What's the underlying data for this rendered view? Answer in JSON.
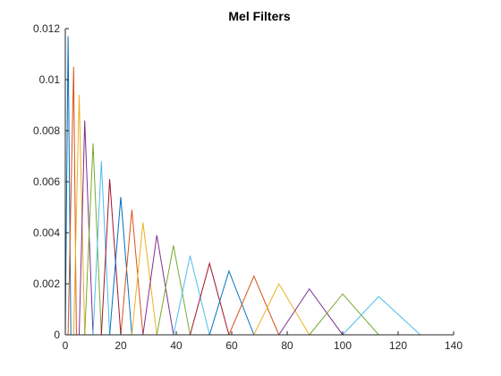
{
  "chart_data": {
    "type": "line",
    "title": "Mel Filters",
    "xlabel": "",
    "ylabel": "",
    "xlim": [
      0,
      140
    ],
    "ylim": [
      0,
      0.012
    ],
    "x_ticks": [
      0,
      20,
      40,
      60,
      80,
      100,
      120,
      140
    ],
    "x_tick_labels": [
      "0",
      "20",
      "40",
      "60",
      "80",
      "100",
      "120",
      "140"
    ],
    "y_ticks": [
      0,
      0.002,
      0.004,
      0.006,
      0.008,
      0.01,
      0.012
    ],
    "y_tick_labels": [
      "0",
      "0.002",
      "0.004",
      "0.006",
      "0.008",
      "0.01",
      "0.012"
    ],
    "grid": false,
    "legend": "none",
    "color_order": [
      "#0072BD",
      "#D95319",
      "#EDB120",
      "#7E2F8E",
      "#77AC30",
      "#4DBEEE",
      "#A2142F"
    ],
    "filters": [
      {
        "left": 0,
        "center": 1,
        "right": 2,
        "peak": 0.0117
      },
      {
        "left": 1,
        "center": 3,
        "right": 4,
        "peak": 0.0105
      },
      {
        "left": 3,
        "center": 5,
        "right": 7,
        "peak": 0.0094
      },
      {
        "left": 5,
        "center": 7,
        "right": 10,
        "peak": 0.0084
      },
      {
        "left": 7,
        "center": 10,
        "right": 13,
        "peak": 0.0075
      },
      {
        "left": 10,
        "center": 13,
        "right": 16,
        "peak": 0.0068
      },
      {
        "left": 13,
        "center": 16,
        "right": 20,
        "peak": 0.0061
      },
      {
        "left": 16,
        "center": 20,
        "right": 24,
        "peak": 0.0054
      },
      {
        "left": 20,
        "center": 24,
        "right": 28,
        "peak": 0.0049
      },
      {
        "left": 24,
        "center": 28,
        "right": 33,
        "peak": 0.0044
      },
      {
        "left": 28,
        "center": 33,
        "right": 39,
        "peak": 0.0039
      },
      {
        "left": 33,
        "center": 39,
        "right": 45,
        "peak": 0.0035
      },
      {
        "left": 39,
        "center": 45,
        "right": 52,
        "peak": 0.0031
      },
      {
        "left": 45,
        "center": 52,
        "right": 59,
        "peak": 0.0028
      },
      {
        "left": 52,
        "center": 59,
        "right": 68,
        "peak": 0.0025
      },
      {
        "left": 59,
        "center": 68,
        "right": 77,
        "peak": 0.0023
      },
      {
        "left": 68,
        "center": 77,
        "right": 88,
        "peak": 0.002
      },
      {
        "left": 77,
        "center": 88,
        "right": 100,
        "peak": 0.0018
      },
      {
        "left": 88,
        "center": 100,
        "right": 113,
        "peak": 0.0016
      },
      {
        "left": 100,
        "center": 113,
        "right": 128,
        "peak": 0.0015
      }
    ]
  }
}
